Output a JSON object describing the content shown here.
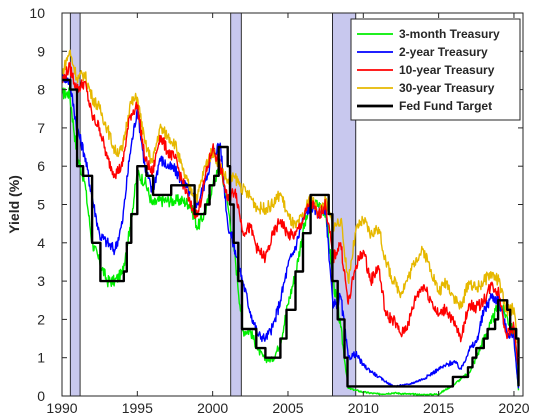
{
  "chart_data": {
    "type": "line",
    "title": "",
    "xlabel": "",
    "ylabel": "Yield (%)",
    "xlim": [
      1990,
      2020.6
    ],
    "ylim": [
      0,
      10
    ],
    "xticks": [
      1990,
      1995,
      2000,
      2005,
      2010,
      2015,
      2020
    ],
    "yticks": [
      0,
      1,
      2,
      3,
      4,
      5,
      6,
      7,
      8,
      9,
      10
    ],
    "xtick_labels": [
      "1990",
      "1995",
      "2000",
      "2005",
      "2010",
      "2015",
      "2020"
    ],
    "ytick_labels": [
      "0",
      "1",
      "2",
      "3",
      "4",
      "5",
      "6",
      "7",
      "8",
      "9",
      "10"
    ],
    "grid": false,
    "legend_position": "top-right",
    "recessions": [
      {
        "start": 1990.55,
        "end": 1991.2
      },
      {
        "start": 2001.2,
        "end": 2001.9
      },
      {
        "start": 2007.95,
        "end": 2009.5
      }
    ],
    "series": [
      {
        "name": "3-month Treasury",
        "color": "#00ee00",
        "width": 1.4,
        "x": [
          1990.0,
          1990.5,
          1991.0,
          1991.5,
          1992.0,
          1992.5,
          1993.0,
          1993.5,
          1994.0,
          1994.5,
          1995.0,
          1995.5,
          1996.0,
          1996.5,
          1997.0,
          1997.5,
          1998.0,
          1998.5,
          1999.0,
          1999.5,
          2000.0,
          2000.5,
          2001.0,
          2001.5,
          2002.0,
          2002.5,
          2003.0,
          2003.5,
          2004.0,
          2004.5,
          2005.0,
          2005.5,
          2006.0,
          2006.5,
          2007.0,
          2007.5,
          2008.0,
          2008.5,
          2009.0,
          2009.5,
          2010.0,
          2011.0,
          2012.0,
          2013.0,
          2014.0,
          2015.0,
          2016.0,
          2016.5,
          2017.0,
          2017.5,
          2018.0,
          2018.5,
          2019.0,
          2019.5,
          2020.0,
          2020.3
        ],
        "y": [
          7.9,
          7.9,
          6.3,
          5.6,
          4.0,
          3.5,
          3.0,
          3.0,
          3.2,
          4.4,
          5.8,
          5.6,
          5.0,
          5.1,
          5.1,
          5.1,
          5.1,
          5.0,
          4.4,
          4.8,
          5.5,
          6.0,
          5.0,
          3.6,
          1.7,
          1.7,
          1.2,
          0.95,
          0.95,
          1.4,
          2.4,
          3.2,
          4.3,
          5.0,
          5.0,
          4.8,
          3.0,
          1.8,
          0.2,
          0.15,
          0.1,
          0.05,
          0.08,
          0.05,
          0.03,
          0.05,
          0.3,
          0.45,
          0.6,
          1.0,
          1.5,
          1.9,
          2.4,
          2.1,
          1.6,
          0.15
        ]
      },
      {
        "name": "2-year Treasury",
        "color": "#0000ff",
        "width": 1.4,
        "x": [
          1990.0,
          1990.5,
          1991.0,
          1991.5,
          1992.0,
          1992.5,
          1993.0,
          1993.5,
          1994.0,
          1994.5,
          1995.0,
          1995.5,
          1996.0,
          1996.5,
          1997.0,
          1997.5,
          1998.0,
          1998.5,
          1999.0,
          1999.5,
          2000.0,
          2000.5,
          2001.0,
          2001.5,
          2002.0,
          2002.5,
          2003.0,
          2003.5,
          2004.0,
          2004.5,
          2005.0,
          2005.5,
          2006.0,
          2006.5,
          2007.0,
          2007.5,
          2008.0,
          2008.5,
          2009.0,
          2009.5,
          2010.0,
          2011.0,
          2012.0,
          2013.0,
          2014.0,
          2015.0,
          2016.0,
          2016.5,
          2017.0,
          2017.5,
          2018.0,
          2018.5,
          2019.0,
          2019.5,
          2020.0,
          2020.3
        ],
        "y": [
          8.4,
          8.2,
          7.0,
          6.3,
          5.2,
          4.2,
          4.0,
          3.8,
          4.5,
          6.3,
          7.5,
          6.0,
          5.3,
          6.2,
          6.0,
          5.9,
          5.6,
          5.3,
          5.0,
          5.6,
          6.3,
          6.6,
          4.5,
          3.8,
          3.0,
          2.2,
          1.6,
          1.5,
          1.8,
          2.5,
          3.4,
          3.9,
          4.6,
          5.0,
          4.8,
          4.9,
          2.3,
          2.6,
          1.0,
          1.1,
          0.8,
          0.5,
          0.25,
          0.3,
          0.45,
          0.7,
          0.9,
          0.7,
          1.2,
          1.4,
          2.2,
          2.6,
          2.5,
          1.7,
          1.5,
          0.2
        ]
      },
      {
        "name": "10-year Treasury",
        "color": "#ff0000",
        "width": 1.4,
        "x": [
          1990.0,
          1990.5,
          1991.0,
          1991.5,
          1992.0,
          1992.5,
          1993.0,
          1993.5,
          1994.0,
          1994.5,
          1995.0,
          1995.5,
          1996.0,
          1996.5,
          1997.0,
          1997.5,
          1998.0,
          1998.5,
          1999.0,
          1999.5,
          2000.0,
          2000.5,
          2001.0,
          2001.5,
          2002.0,
          2002.5,
          2003.0,
          2003.5,
          2004.0,
          2004.5,
          2005.0,
          2005.5,
          2006.0,
          2006.5,
          2007.0,
          2007.5,
          2008.0,
          2008.5,
          2009.0,
          2009.5,
          2010.0,
          2010.5,
          2011.0,
          2011.5,
          2012.0,
          2012.5,
          2013.0,
          2013.5,
          2014.0,
          2014.5,
          2015.0,
          2015.5,
          2016.0,
          2016.5,
          2017.0,
          2017.5,
          2018.0,
          2018.5,
          2019.0,
          2019.5,
          2020.0,
          2020.3
        ],
        "y": [
          8.2,
          8.6,
          8.0,
          8.2,
          7.3,
          7.0,
          6.2,
          5.8,
          6.0,
          7.3,
          7.6,
          6.2,
          5.8,
          6.8,
          6.4,
          6.2,
          5.6,
          5.0,
          4.7,
          5.7,
          6.5,
          6.0,
          5.1,
          5.4,
          4.3,
          4.4,
          3.8,
          3.6,
          4.2,
          4.6,
          4.2,
          4.2,
          4.6,
          5.1,
          4.7,
          5.0,
          3.6,
          4.0,
          2.4,
          3.4,
          3.8,
          3.0,
          3.4,
          2.1,
          2.0,
          1.6,
          1.9,
          2.6,
          2.9,
          2.5,
          2.1,
          2.3,
          1.9,
          1.5,
          2.4,
          2.3,
          2.5,
          2.9,
          2.7,
          1.6,
          1.8,
          0.7
        ]
      },
      {
        "name": "30-year Treasury",
        "color": "#e6b800",
        "width": 1.4,
        "x": [
          1990.0,
          1990.5,
          1991.0,
          1991.5,
          1992.0,
          1992.5,
          1993.0,
          1993.5,
          1994.0,
          1994.5,
          1995.0,
          1995.5,
          1996.0,
          1996.5,
          1997.0,
          1997.5,
          1998.0,
          1998.5,
          1999.0,
          1999.5,
          2000.0,
          2000.5,
          2001.0,
          2001.5,
          2002.0,
          2002.5,
          2003.0,
          2003.5,
          2004.0,
          2004.5,
          2005.0,
          2005.5,
          2006.0,
          2006.5,
          2007.0,
          2007.5,
          2008.0,
          2008.5,
          2009.0,
          2009.5,
          2010.0,
          2010.5,
          2011.0,
          2011.5,
          2012.0,
          2012.5,
          2013.0,
          2013.5,
          2014.0,
          2014.5,
          2015.0,
          2015.5,
          2016.0,
          2016.5,
          2017.0,
          2017.5,
          2018.0,
          2018.5,
          2019.0,
          2019.5,
          2020.0,
          2020.3
        ],
        "y": [
          8.4,
          9.0,
          8.3,
          8.4,
          7.8,
          7.5,
          7.0,
          6.4,
          6.4,
          7.6,
          7.8,
          6.6,
          6.1,
          7.0,
          6.8,
          6.6,
          5.9,
          5.4,
          5.2,
          6.0,
          6.4,
          6.0,
          5.6,
          5.7,
          5.4,
          5.2,
          4.9,
          4.9,
          5.0,
          5.3,
          4.7,
          4.4,
          4.7,
          5.2,
          4.8,
          5.1,
          4.4,
          4.6,
          3.0,
          4.3,
          4.6,
          4.2,
          4.4,
          3.5,
          3.0,
          2.7,
          3.1,
          3.6,
          3.8,
          3.3,
          2.7,
          3.0,
          2.6,
          2.3,
          3.0,
          2.8,
          3.0,
          3.2,
          3.0,
          2.2,
          2.3,
          1.2
        ]
      },
      {
        "name": "Fed Fund Target",
        "color": "#000000",
        "width": 2.4,
        "step": true,
        "x": [
          1990.0,
          1990.55,
          1991.0,
          1991.4,
          1992.0,
          1992.55,
          1994.1,
          1994.3,
          1994.6,
          1995.0,
          1995.6,
          1996.05,
          1997.25,
          1998.8,
          1999.5,
          1999.8,
          2000.1,
          2000.4,
          2001.0,
          2001.15,
          2001.4,
          2001.7,
          2001.95,
          2002.9,
          2003.5,
          2004.5,
          2004.9,
          2005.5,
          2006.0,
          2006.5,
          2007.7,
          2007.95,
          2008.3,
          2008.75,
          2008.95,
          2015.95,
          2016.95,
          2017.25,
          2017.5,
          2018.0,
          2018.25,
          2018.75,
          2018.95,
          2019.55,
          2019.75,
          2020.15,
          2020.3
        ],
        "y": [
          8.25,
          8.0,
          6.0,
          5.75,
          4.0,
          3.0,
          3.25,
          4.0,
          4.75,
          6.0,
          5.75,
          5.25,
          5.5,
          4.75,
          5.0,
          5.5,
          5.75,
          6.5,
          6.0,
          5.0,
          4.0,
          3.0,
          1.75,
          1.25,
          1.0,
          1.5,
          2.25,
          3.25,
          4.25,
          5.25,
          4.75,
          3.0,
          2.0,
          1.0,
          0.25,
          0.5,
          0.75,
          1.0,
          1.25,
          1.5,
          1.75,
          2.0,
          2.5,
          2.25,
          1.75,
          1.5,
          0.25
        ]
      }
    ]
  }
}
